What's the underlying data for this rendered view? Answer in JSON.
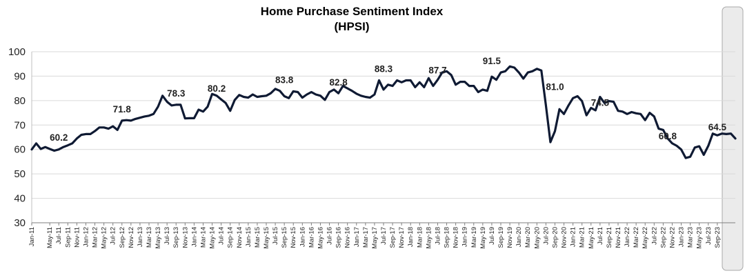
{
  "chart_data": {
    "type": "line",
    "title": "Home Purchase Sentiment Index",
    "subtitle": "(HPSI)",
    "xlabel": "",
    "ylabel": "",
    "ylim": [
      30,
      100
    ],
    "yticks": [
      30,
      40,
      50,
      60,
      70,
      80,
      90,
      100
    ],
    "grid": "horizontal",
    "x_start": "Jan-11",
    "x_tick_labels": [
      "Jan-11",
      "May-11",
      "Jul-11",
      "Sep-11",
      "Nov-11",
      "Jan-12",
      "Mar-12",
      "May-12",
      "Jul-12",
      "Sep-12",
      "Nov-12",
      "Jan-13",
      "Mar-13",
      "May-13",
      "Jul-13",
      "Sep-13",
      "Nov-13",
      "Jan-14",
      "Mar-14",
      "May-14",
      "Jul-14",
      "Sep-14",
      "Nov-14",
      "Jan-15",
      "Mar-15",
      "May-15",
      "Jul-15",
      "Sep-15",
      "Nov-15",
      "Jan-16",
      "Mar-16",
      "May-16",
      "Jul-16",
      "Sep-16",
      "Nov-16",
      "Jan-17",
      "Mar-17",
      "May-17",
      "Jul-17",
      "Sep-17",
      "Nov-17",
      "Jan-18",
      "Mar-18",
      "May-18",
      "Jul-18",
      "Sep-18",
      "Nov-18",
      "Jan-19",
      "Mar-19",
      "May-19",
      "Jul-19",
      "Sep-19",
      "Nov-19",
      "Jan-20",
      "Mar-20",
      "May-20",
      "Jul-20",
      "Sep-20",
      "Nov-20",
      "Jan-21",
      "Mar-21",
      "May-21",
      "Jul-21",
      "Sep-21",
      "Nov-21",
      "Jan-22",
      "Mar-22",
      "May-22",
      "Jul-22",
      "Sep-22",
      "Nov-22",
      "Jan-23",
      "Mar-23",
      "May-23",
      "Jul-23",
      "Sep-23"
    ],
    "line_color": "#0f1a33",
    "series": [
      {
        "name": "",
        "values": [
          60.0,
          62.5,
          60.2,
          61.0,
          60.2,
          59.5,
          60.0,
          61.0,
          61.7,
          62.5,
          64.5,
          66.0,
          66.3,
          66.3,
          67.5,
          69.0,
          69.0,
          68.5,
          69.5,
          68.0,
          71.8,
          72.0,
          71.8,
          72.5,
          73.0,
          73.5,
          73.8,
          74.5,
          77.5,
          82.0,
          79.5,
          78.0,
          78.3,
          78.3,
          72.7,
          72.8,
          72.8,
          76.3,
          75.5,
          77.5,
          82.7,
          82.0,
          80.5,
          79.0,
          75.8,
          80.2,
          82.3,
          81.5,
          81.2,
          82.5,
          81.5,
          81.8,
          82.0,
          83.0,
          84.8,
          84.0,
          81.8,
          81.0,
          83.8,
          83.5,
          81.2,
          82.5,
          83.5,
          82.5,
          82.0,
          80.3,
          83.5,
          84.5,
          83.0,
          86.0,
          85.0,
          84.0,
          82.8,
          82.0,
          81.5,
          81.2,
          82.5,
          88.3,
          84.5,
          86.5,
          86.0,
          88.3,
          87.5,
          88.3,
          88.3,
          85.5,
          87.5,
          85.5,
          89.2,
          86.0,
          88.5,
          91.5,
          92.0,
          90.5,
          86.5,
          87.7,
          87.7,
          86.0,
          86.0,
          83.5,
          84.5,
          84.0,
          89.8,
          88.5,
          91.5,
          92.0,
          94.0,
          93.5,
          91.5,
          89.0,
          91.5,
          92.0,
          93.0,
          92.3,
          78.0,
          63.0,
          67.5,
          76.5,
          74.5,
          78.0,
          81.0,
          81.8,
          79.8,
          74.0,
          77.0,
          76.0,
          81.5,
          79.0,
          79.8,
          79.5,
          75.8,
          75.5,
          74.5,
          75.3,
          74.8,
          74.5,
          72.0,
          75.0,
          73.5,
          68.5,
          68.0,
          64.5,
          62.5,
          61.5,
          60.0,
          56.5,
          57.0,
          60.8,
          61.3,
          57.8,
          61.5,
          66.5,
          65.8,
          66.5,
          66.3,
          66.5,
          64.5
        ]
      }
    ],
    "annotations": [
      {
        "x": "Jul-11",
        "y": 60.2,
        "label": "60.2"
      },
      {
        "x": "Sep-12",
        "y": 71.8,
        "label": "71.8"
      },
      {
        "x": "Sep-13",
        "y": 78.3,
        "label": "78.3"
      },
      {
        "x": "Jun-14",
        "y": 80.2,
        "label": "80.2"
      },
      {
        "x": "Sep-15",
        "y": 83.8,
        "label": "83.8"
      },
      {
        "x": "Sep-16",
        "y": 82.8,
        "label": "82.8"
      },
      {
        "x": "Jul-17",
        "y": 88.3,
        "label": "88.3"
      },
      {
        "x": "Jul-18",
        "y": 87.7,
        "label": "87.7"
      },
      {
        "x": "Jul-19",
        "y": 91.5,
        "label": "91.5"
      },
      {
        "x": "Sep-20",
        "y": 81.0,
        "label": "81.0"
      },
      {
        "x": "Jul-21",
        "y": 74.5,
        "label": "74.5"
      },
      {
        "x": "Oct-22",
        "y": 60.8,
        "label": "60.8"
      },
      {
        "x": "Sep-23",
        "y": 64.5,
        "label": "64.5"
      }
    ]
  }
}
